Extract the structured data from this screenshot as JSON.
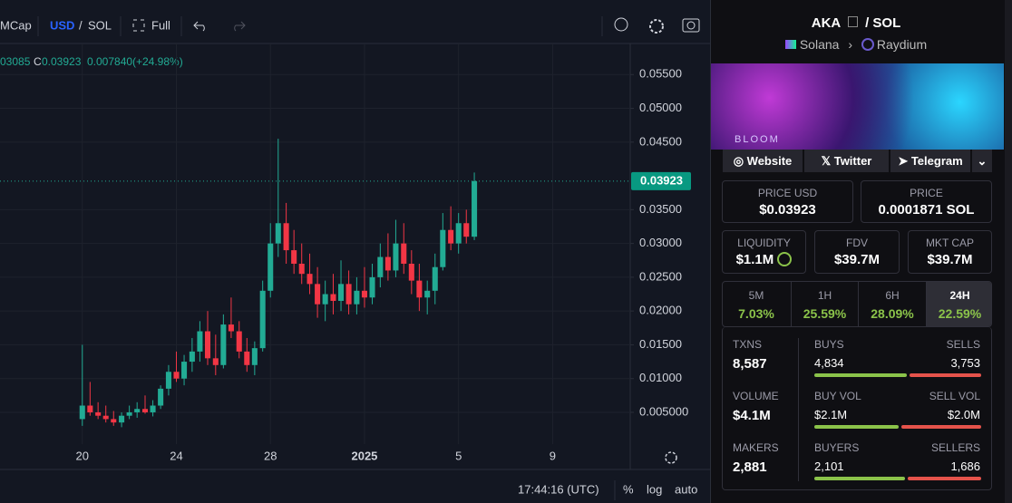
{
  "toolbar": {
    "market_cap": "MCap",
    "currency": "USD",
    "separator": "/",
    "quote": "SOL",
    "fullscreen": "Full"
  },
  "chart_data": {
    "type": "candlestick",
    "legend": {
      "open": "03085",
      "close_prefix": "C",
      "close": "0.03923",
      "change": "0.007840",
      "change_pct": "(+24.98%)"
    },
    "x": [
      0,
      0.33,
      0.67,
      1,
      1.33,
      1.67,
      2,
      2.33,
      2.67,
      3,
      3.33,
      3.67,
      4,
      4.33,
      4.67,
      5,
      5.33,
      5.67,
      6,
      6.33,
      6.67,
      7,
      7.33,
      7.67,
      8,
      8.33,
      8.67,
      9,
      9.33,
      9.67,
      10,
      10.33,
      10.67,
      11,
      11.33,
      11.67,
      12,
      12.33,
      12.67,
      13,
      13.33,
      13.67,
      14,
      14.33,
      14.67,
      15,
      15.33,
      15.67,
      16,
      16.33,
      16.67
    ],
    "open": [
      0.004,
      0.006,
      0.005,
      0.0045,
      0.004,
      0.0035,
      0.0045,
      0.005,
      0.0055,
      0.005,
      0.006,
      0.0085,
      0.011,
      0.01,
      0.0125,
      0.014,
      0.017,
      0.013,
      0.012,
      0.018,
      0.017,
      0.014,
      0.012,
      0.0145,
      0.023,
      0.03,
      0.033,
      0.029,
      0.027,
      0.0255,
      0.024,
      0.021,
      0.0225,
      0.0215,
      0.024,
      0.021,
      0.023,
      0.022,
      0.025,
      0.028,
      0.026,
      0.03,
      0.027,
      0.0245,
      0.022,
      0.023,
      0.0265,
      0.032,
      0.03,
      0.033,
      0.031
    ],
    "high": [
      0.015,
      0.0095,
      0.0065,
      0.006,
      0.0052,
      0.005,
      0.006,
      0.0065,
      0.0075,
      0.0068,
      0.009,
      0.012,
      0.014,
      0.0135,
      0.016,
      0.0185,
      0.02,
      0.0165,
      0.0195,
      0.022,
      0.0185,
      0.016,
      0.0155,
      0.0245,
      0.033,
      0.0455,
      0.036,
      0.032,
      0.03,
      0.0285,
      0.0265,
      0.0245,
      0.0255,
      0.0275,
      0.026,
      0.025,
      0.0265,
      0.027,
      0.03,
      0.0315,
      0.0335,
      0.033,
      0.029,
      0.027,
      0.0245,
      0.0285,
      0.0345,
      0.0355,
      0.0345,
      0.035,
      0.0405
    ],
    "low": [
      0.003,
      0.0045,
      0.004,
      0.0035,
      0.003,
      0.0028,
      0.004,
      0.0042,
      0.0048,
      0.0044,
      0.0055,
      0.0075,
      0.0095,
      0.009,
      0.011,
      0.0125,
      0.012,
      0.0105,
      0.0115,
      0.016,
      0.013,
      0.011,
      0.0105,
      0.014,
      0.022,
      0.028,
      0.027,
      0.0255,
      0.024,
      0.0225,
      0.019,
      0.0185,
      0.0195,
      0.02,
      0.0195,
      0.0195,
      0.0205,
      0.021,
      0.0235,
      0.0245,
      0.025,
      0.0255,
      0.0225,
      0.02,
      0.0195,
      0.021,
      0.026,
      0.029,
      0.0285,
      0.03,
      0.0305
    ],
    "close": [
      0.006,
      0.005,
      0.0045,
      0.004,
      0.0035,
      0.0045,
      0.005,
      0.0055,
      0.005,
      0.006,
      0.0085,
      0.011,
      0.01,
      0.0125,
      0.014,
      0.017,
      0.013,
      0.012,
      0.018,
      0.017,
      0.014,
      0.012,
      0.0145,
      0.023,
      0.03,
      0.033,
      0.029,
      0.027,
      0.0255,
      0.024,
      0.021,
      0.0225,
      0.0215,
      0.024,
      0.021,
      0.023,
      0.022,
      0.025,
      0.028,
      0.026,
      0.03,
      0.027,
      0.0245,
      0.022,
      0.023,
      0.0265,
      0.032,
      0.03,
      0.033,
      0.031,
      0.03923
    ],
    "up_color": "#22ab94",
    "down_color": "#f23645",
    "grid": true,
    "xlim": [
      -3.5,
      23.3
    ],
    "xticks": [
      {
        "value": 0,
        "label": "20"
      },
      {
        "value": 4,
        "label": "24"
      },
      {
        "value": 8,
        "label": "28"
      },
      {
        "value": 12,
        "label": "2025"
      },
      {
        "value": 16,
        "label": "5"
      },
      {
        "value": 20,
        "label": "9"
      }
    ],
    "ylim": [
      0.0003,
      0.0596
    ],
    "yticks": [
      {
        "value": 0.005,
        "label": "0.005000"
      },
      {
        "value": 0.01,
        "label": "0.01000"
      },
      {
        "value": 0.015,
        "label": "0.01500"
      },
      {
        "value": 0.02,
        "label": "0.02000"
      },
      {
        "value": 0.025,
        "label": "0.02500"
      },
      {
        "value": 0.03,
        "label": "0.03000"
      },
      {
        "value": 0.035,
        "label": "0.03500"
      },
      {
        "value": 0.045,
        "label": "0.04500"
      },
      {
        "value": 0.05,
        "label": "0.05000"
      },
      {
        "value": 0.055,
        "label": "0.05500"
      }
    ],
    "last_price": {
      "value": 0.03923,
      "label": "0.03923"
    }
  },
  "status_bar": {
    "time": "17:44:16 (UTC)",
    "percent": "%",
    "log": "log",
    "auto": "auto"
  },
  "pair": {
    "base": "AKA",
    "quote": "/ SOL",
    "chain": "Solana",
    "dex": "Raydium",
    "banner": "BLOOM",
    "links": [
      "Website",
      "Twitter",
      "Telegram"
    ],
    "price_usd": {
      "label": "PRICE USD",
      "value": "$0.03923"
    },
    "price": {
      "label": "PRICE",
      "value": "0.0001871 SOL"
    },
    "liquidity": {
      "label": "LIQUIDITY",
      "value": "$1.1M"
    },
    "fdv": {
      "label": "FDV",
      "value": "$39.7M"
    },
    "mkt_cap": {
      "label": "MKT CAP",
      "value": "$39.7M"
    },
    "changes": [
      {
        "period": "5M",
        "value": "7.03%"
      },
      {
        "period": "1H",
        "value": "25.59%"
      },
      {
        "period": "6H",
        "value": "28.09%"
      },
      {
        "period": "24H",
        "value": "22.59%"
      }
    ],
    "stats": [
      {
        "left_label": "TXNS",
        "left_value": "8,587",
        "a_label": "BUYS",
        "a": {
          "value": 4834,
          "label": "4,834"
        },
        "b_label": "SELLS",
        "b": {
          "value": 3753,
          "label": "3,753"
        }
      },
      {
        "left_label": "VOLUME",
        "left_value": "$4.1M",
        "a_label": "BUY VOL",
        "a": {
          "value": 2100000,
          "label": "$2.1M"
        },
        "b_label": "SELL VOL",
        "b": {
          "value": 2000000,
          "label": "$2.0M"
        }
      },
      {
        "left_label": "MAKERS",
        "left_value": "2,881",
        "a_label": "BUYERS",
        "a": {
          "value": 2101,
          "label": "2,101"
        },
        "b_label": "SELLERS",
        "b": {
          "value": 1686,
          "label": "1,686"
        }
      }
    ]
  }
}
